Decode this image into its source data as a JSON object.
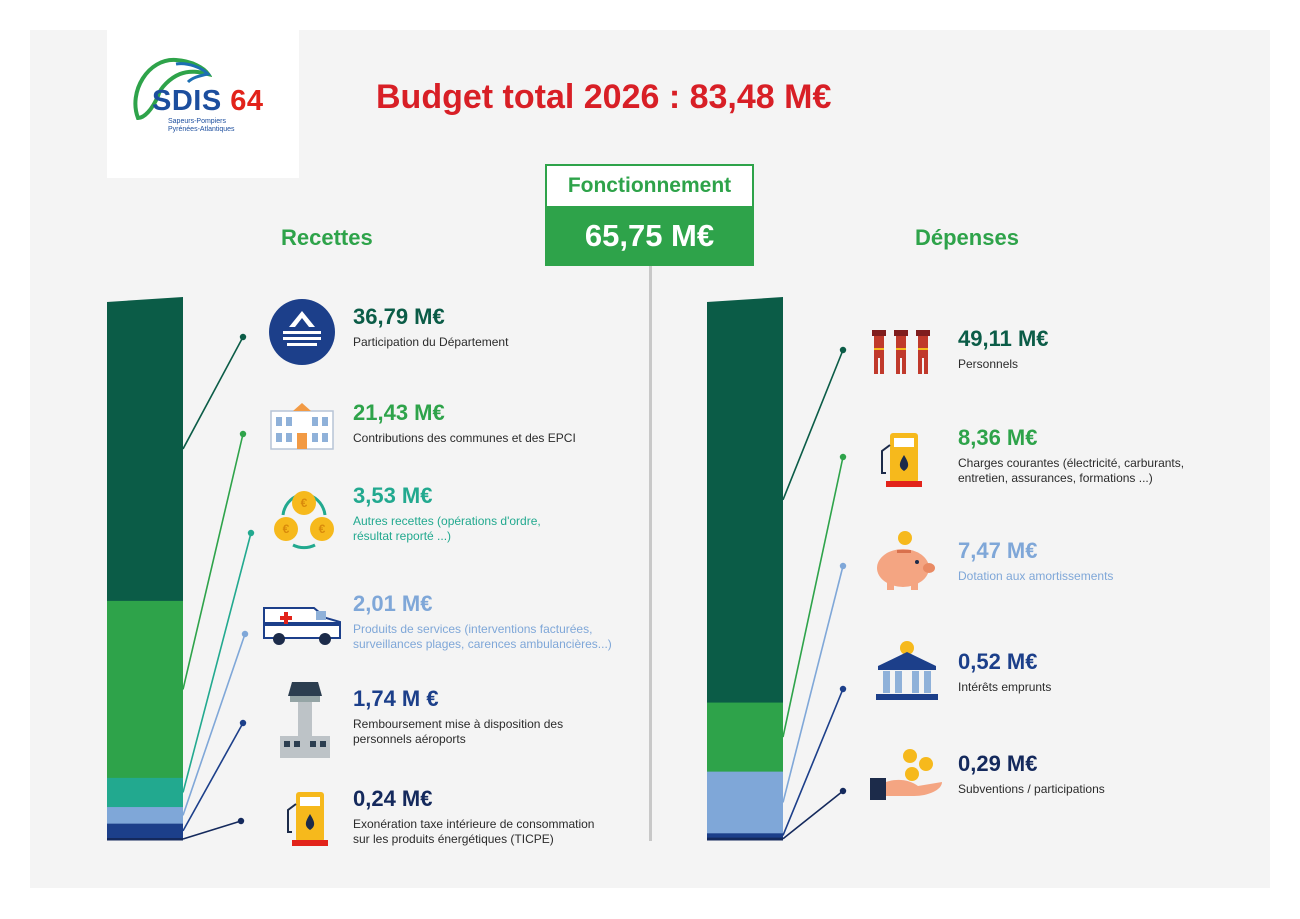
{
  "header": {
    "logo_name": "SDIS",
    "logo_number": "64",
    "logo_subtitle_1": "Sapeurs-Pompiers",
    "logo_subtitle_2": "Pyrénées-Atlantiques",
    "title": "Budget total 2026 : 83,48 M€"
  },
  "center": {
    "label": "Fonctionnement",
    "value": "65,75 M€"
  },
  "colors": {
    "dark_green": "#0b5c47",
    "green": "#2ea34a",
    "teal": "#22a98f",
    "light_blue": "#7fa7d8",
    "navy": "#1c3f8a",
    "dark_navy": "#14295c",
    "title_red": "#d81f26"
  },
  "chart_data": [
    {
      "type": "bar",
      "title": "Recettes",
      "stacked": true,
      "categories": [
        "Participation du Département",
        "Contributions des communes et des EPCI",
        "Autres recettes (opérations d'ordre, résultat reporté ...)",
        "Produits de services (interventions facturées, surveillances plages, carences ambulancières...)",
        "Remboursement mise à disposition des personnels aéroports",
        "Exonération taxe intérieure de consommation sur les produits énergétiques (TICPE)"
      ],
      "values": [
        36.79,
        21.43,
        3.53,
        2.01,
        1.74,
        0.24
      ],
      "labels": [
        "36,79 M€",
        "21,43 M€",
        "3,53 M€",
        "2,01 M€",
        "1,74 M €",
        "0,24 M€"
      ],
      "colors": [
        "#0b5c47",
        "#2ea34a",
        "#22a98f",
        "#7fa7d8",
        "#1c3f8a",
        "#14295c"
      ],
      "icons": [
        "departement-logo-icon",
        "town-hall-icon",
        "coins-cycle-icon",
        "ambulance-icon",
        "control-tower-icon",
        "fuel-pump-icon"
      ]
    },
    {
      "type": "bar",
      "title": "Dépenses",
      "stacked": true,
      "categories": [
        "Personnels",
        "Charges courantes (électricité, carburants, entretien, assurances, formations ...)",
        "Dotation aux amortissements",
        "Intérêts emprunts",
        "Subventions / participations"
      ],
      "values": [
        49.11,
        8.36,
        7.47,
        0.52,
        0.29
      ],
      "labels": [
        "49,11 M€",
        "8,36 M€",
        "7,47 M€",
        "0,52 M€",
        "0,29 M€"
      ],
      "colors": [
        "#0b5c47",
        "#2ea34a",
        "#7fa7d8",
        "#1c3f8a",
        "#14295c"
      ],
      "icons": [
        "firefighters-icon",
        "fuel-pump-icon",
        "piggy-bank-icon",
        "bank-building-icon",
        "hand-coins-icon"
      ]
    }
  ]
}
